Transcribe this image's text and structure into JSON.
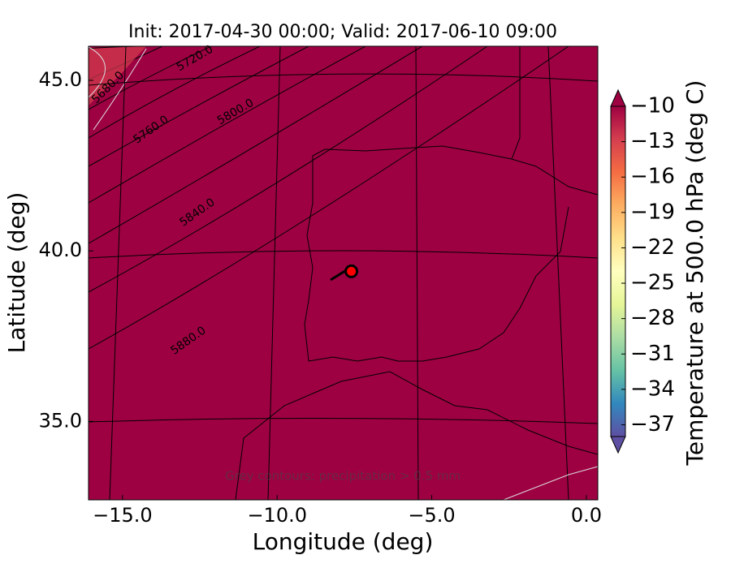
{
  "chart_data": {
    "type": "map",
    "title": "Init: 2017-04-30 00:00; Valid: 2017-06-10 09:00",
    "xlabel": "Longitude (deg)",
    "ylabel": "Latitude (deg)",
    "xlim": [
      -16.1,
      0.37
    ],
    "ylim": [
      32.7,
      46.0
    ],
    "xticks": [
      {
        "value": -15,
        "label": "−15.0"
      },
      {
        "value": -10,
        "label": "−10.0"
      },
      {
        "value": -5,
        "label": "−5.0"
      },
      {
        "value": 0,
        "label": "0.0"
      }
    ],
    "yticks": [
      {
        "value": 35,
        "label": "35.0"
      },
      {
        "value": 40,
        "label": "40.0"
      },
      {
        "value": 45,
        "label": "45.0"
      }
    ],
    "fill_color": "#9e0142",
    "contour_labels": [
      "5680.0",
      "5720.0",
      "5760.0",
      "5800.0",
      "5840.0",
      "5880.0"
    ],
    "note": "Grey contours: precipitation > 0.5 mm",
    "marker": {
      "x": -7.6,
      "y": 39.4,
      "color": "#ff0000"
    },
    "colorbar": {
      "label": "Temperature at 500.0 hPa (deg C)",
      "clim": [
        -38,
        -10
      ],
      "ticks": [
        {
          "value": -10,
          "label": "−10"
        },
        {
          "value": -13,
          "label": "−13"
        },
        {
          "value": -16,
          "label": "−16"
        },
        {
          "value": -19,
          "label": "−19"
        },
        {
          "value": -22,
          "label": "−22"
        },
        {
          "value": -25,
          "label": "−25"
        },
        {
          "value": -28,
          "label": "−28"
        },
        {
          "value": -31,
          "label": "−31"
        },
        {
          "value": -34,
          "label": "−34"
        },
        {
          "value": -37,
          "label": "−37"
        }
      ],
      "colors": [
        "#5e4fa2",
        "#3288bd",
        "#66c2a5",
        "#abdda4",
        "#e6f598",
        "#ffffbf",
        "#fee08b",
        "#fdae61",
        "#f46d43",
        "#d53e4f",
        "#9e0142"
      ]
    }
  }
}
